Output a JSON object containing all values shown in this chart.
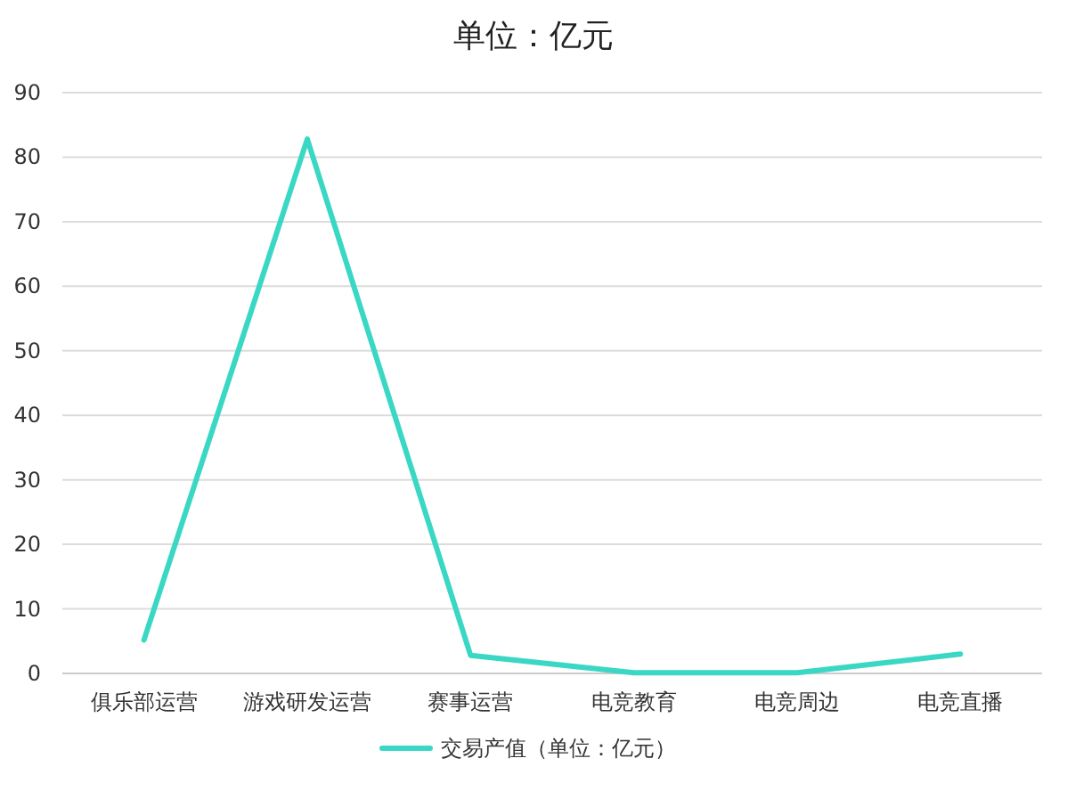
{
  "chart_data": {
    "type": "line",
    "title": "单位：亿元",
    "categories": [
      "俱乐部运营",
      "游戏研发运营",
      "赛事运营",
      "电竞教育",
      "电竞周边",
      "电竞直播"
    ],
    "series": [
      {
        "name": "交易产值（单位：亿元）",
        "color": "#3ad8c4",
        "values": [
          5.2,
          82.8,
          2.8,
          0.1,
          0.1,
          3
        ]
      }
    ],
    "ylim": [
      0,
      90
    ],
    "yticks": [
      0,
      10,
      20,
      30,
      40,
      50,
      60,
      70,
      80,
      90
    ],
    "grid": "y",
    "legend": "bottom",
    "marker": "none",
    "line_style": "solid"
  }
}
